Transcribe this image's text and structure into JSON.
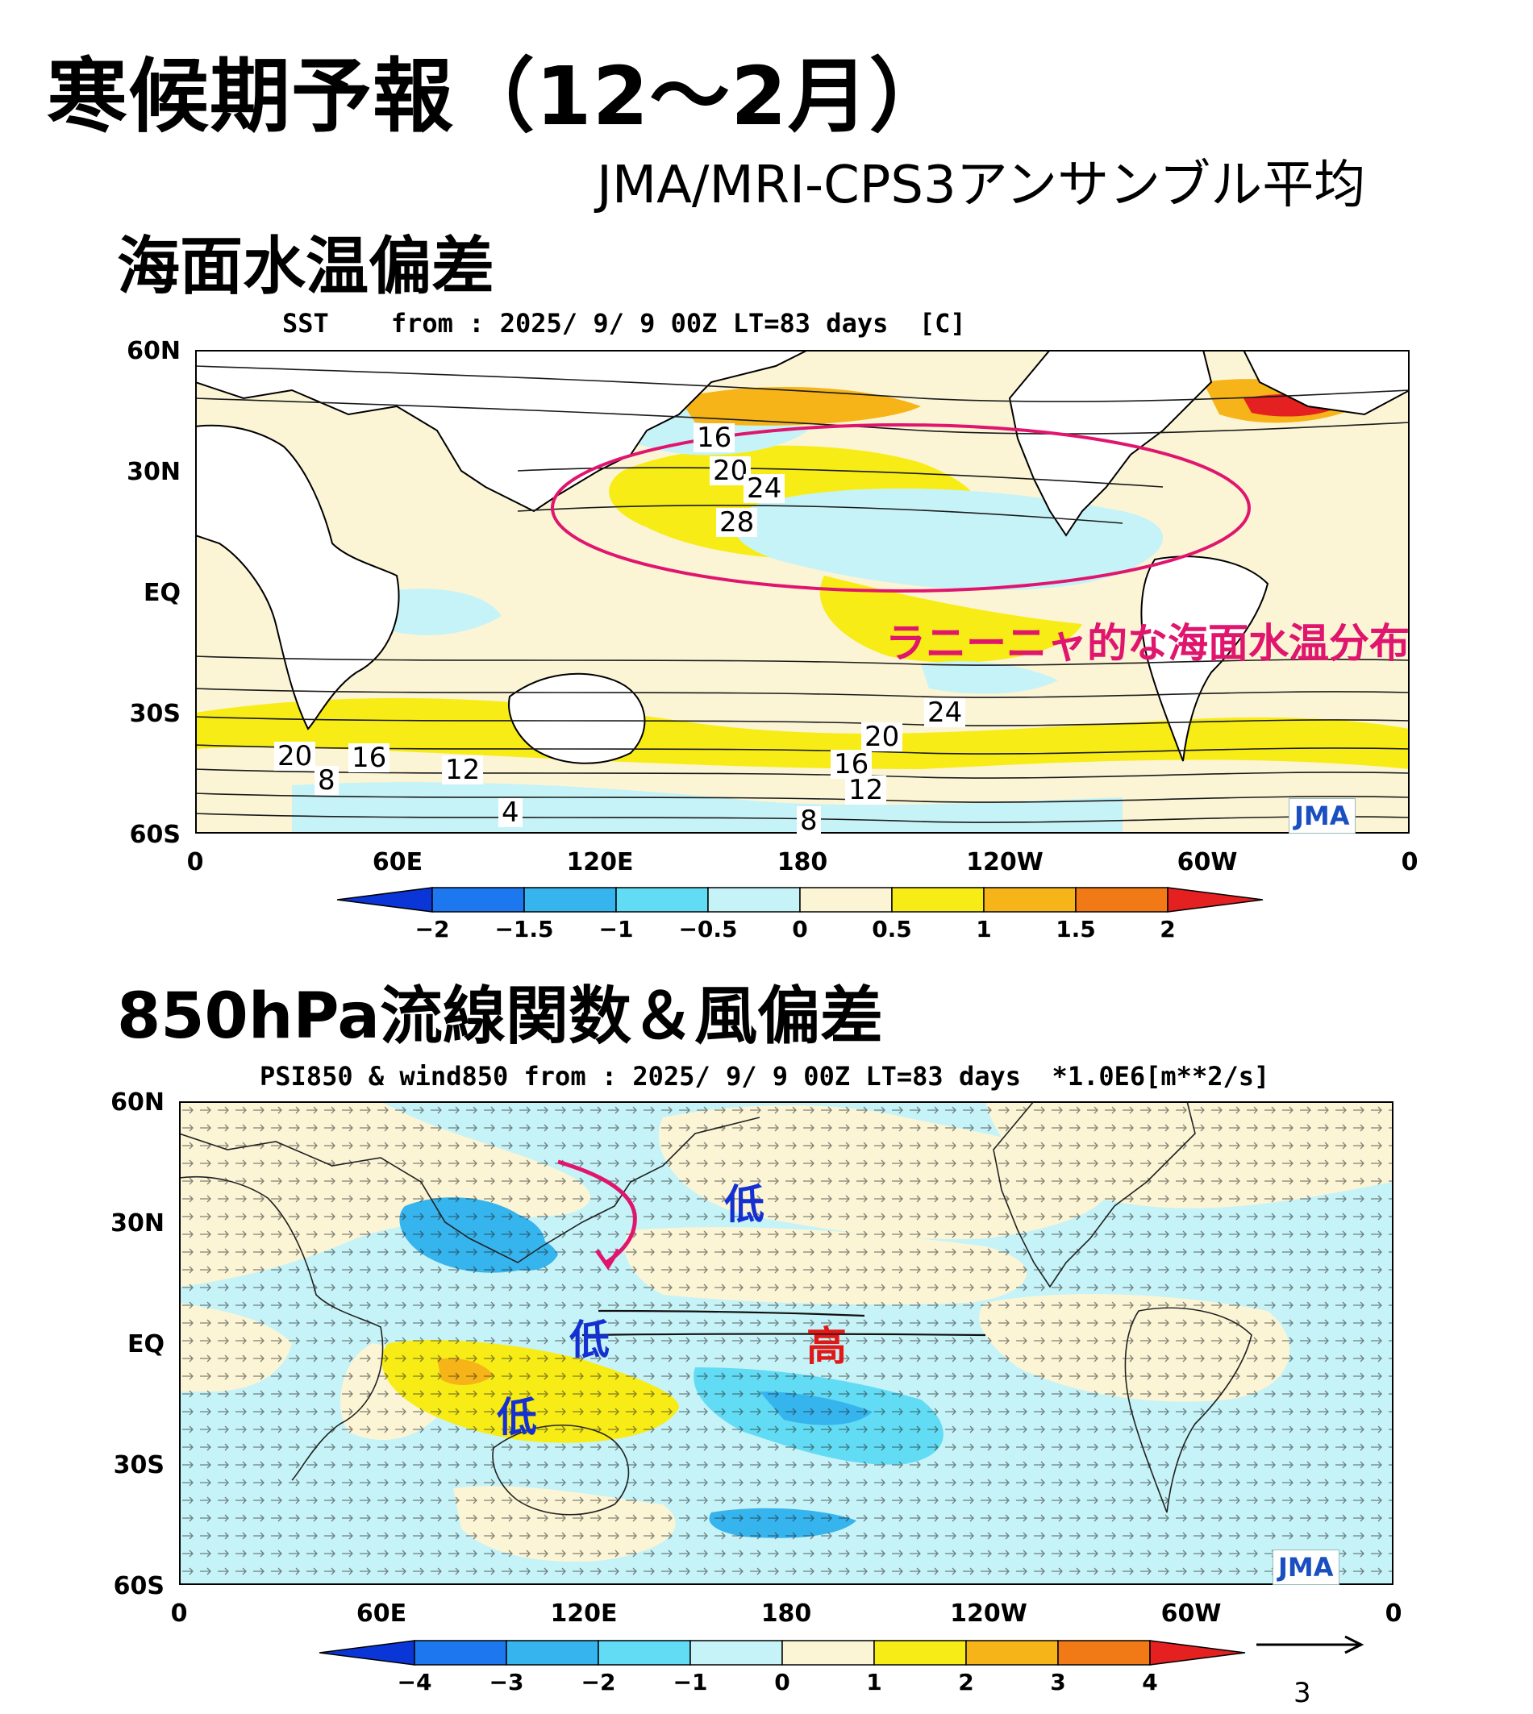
{
  "title": "寒候期予報（12～2月）",
  "subtitle": "JMA/MRI-CPS3アンサンブル平均",
  "colors": {
    "annotation": "#e0156e",
    "low": "#1530d0",
    "high": "#e01818",
    "land": "#ffffff",
    "neutral_pos": "#fbf5d6",
    "neutral_neg": "#c6f3f7"
  },
  "sst_panel": {
    "section_title": "海面水温偏差",
    "header": "SST    from : 2025/ 9/ 9 00Z LT=83 days  [C]",
    "lat_labels": [
      "60N",
      "30N",
      "EQ",
      "30S",
      "60S"
    ],
    "lon_labels": [
      "0",
      "60E",
      "120E",
      "180",
      "120W",
      "60W",
      "0"
    ],
    "contour_labels": [
      "16",
      "20",
      "24",
      "28",
      "24",
      "20",
      "16",
      "12",
      "8",
      "20",
      "16",
      "8",
      "12",
      "4"
    ],
    "annotation": "ラニーニャ的な海面水温分布",
    "logo": "JMA",
    "colorbar": {
      "labels": [
        "−2",
        "−1.5",
        "−1",
        "−0.5",
        "0",
        "0.5",
        "1",
        "1.5",
        "2"
      ],
      "colors": [
        "#0a36d8",
        "#1d78f0",
        "#36b4ee",
        "#62dcf4",
        "#c6f3f7",
        "#fbf5d6",
        "#f8ec16",
        "#f6b418",
        "#f27a16",
        "#e42020"
      ]
    }
  },
  "psi_panel": {
    "section_title": "850hPa流線関数＆風偏差",
    "header": "PSI850 & wind850 from : 2025/ 9/ 9 00Z LT=83 days  *1.0E6[m**2/s]",
    "lat_labels": [
      "60N",
      "30N",
      "EQ",
      "30S",
      "60S"
    ],
    "lon_labels": [
      "0",
      "60E",
      "120E",
      "180",
      "120W",
      "60W",
      "0"
    ],
    "low_label": "低",
    "high_label": "高",
    "logo": "JMA",
    "wind_reference": "3",
    "colorbar": {
      "labels": [
        "−4",
        "−3",
        "−2",
        "−1",
        "0",
        "1",
        "2",
        "3",
        "4"
      ],
      "colors": [
        "#0a36d8",
        "#1d78f0",
        "#36b4ee",
        "#62dcf4",
        "#c6f3f7",
        "#fbf5d6",
        "#f8ec16",
        "#f6b418",
        "#f27a16",
        "#e42020"
      ]
    }
  }
}
